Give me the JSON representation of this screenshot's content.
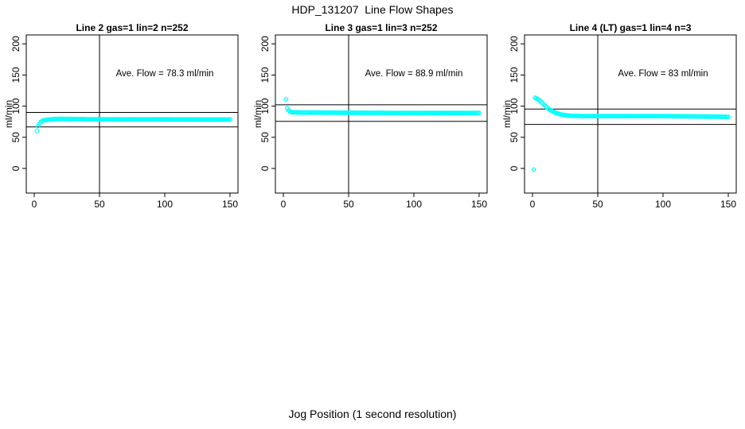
{
  "main_title": "HDP_131207  Line Flow Shapes",
  "x_axis_label": "Jog Position (1 second resolution)",
  "colors": {
    "points": "#00FFFF",
    "axis": "#000000",
    "background": "#FFFFFF"
  },
  "chart_data": [
    {
      "type": "scatter",
      "title": "Line 2 gas=1 lin=2 n=252",
      "ylabel": "ml/min",
      "xlim": [
        0,
        150
      ],
      "ylim": [
        0,
        200
      ],
      "xticks": [
        0,
        50,
        100,
        150
      ],
      "yticks": [
        0,
        50,
        100,
        150,
        200
      ],
      "annotation": "Ave. Flow =  78.3  ml/min",
      "ave_flow_ml_min": 78.3,
      "vline_x": 50,
      "h_line_upper": 90.0,
      "h_line_lower": 66.6,
      "marker": "open-circle",
      "points": [
        [
          2,
          60
        ],
        [
          3,
          68
        ],
        [
          4,
          72
        ],
        [
          5,
          74.5
        ],
        [
          6,
          76
        ],
        [
          7,
          77
        ],
        [
          8,
          77.5
        ],
        [
          9,
          77.8
        ],
        [
          10,
          78
        ],
        [
          12,
          78.6
        ],
        [
          14,
          79
        ],
        [
          16,
          79.3
        ],
        [
          18,
          79.4
        ],
        [
          20,
          79.5
        ],
        [
          25,
          79.4
        ],
        [
          30,
          79.2
        ],
        [
          40,
          79
        ],
        [
          50,
          79
        ],
        [
          60,
          78.9
        ],
        [
          70,
          78.8
        ],
        [
          80,
          78.8
        ],
        [
          90,
          78.8
        ],
        [
          100,
          78.8
        ],
        [
          110,
          78.7
        ],
        [
          120,
          78.7
        ],
        [
          130,
          78.6
        ],
        [
          140,
          78.6
        ],
        [
          150,
          78.6
        ]
      ]
    },
    {
      "type": "scatter",
      "title": "Line 3 gas=1 lin=3 n=252",
      "ylabel": "ml/min",
      "xlim": [
        0,
        150
      ],
      "ylim": [
        0,
        200
      ],
      "xticks": [
        0,
        50,
        100,
        150
      ],
      "yticks": [
        0,
        50,
        100,
        150,
        200
      ],
      "annotation": "Ave. Flow =  88.9  ml/min",
      "ave_flow_ml_min": 88.9,
      "vline_x": 50,
      "h_line_upper": 102.2,
      "h_line_lower": 75.6,
      "marker": "open-circle",
      "points": [
        [
          2,
          111
        ],
        [
          3,
          96.5
        ],
        [
          4,
          93
        ],
        [
          5,
          91.5
        ],
        [
          6,
          90.5
        ],
        [
          7,
          90.2
        ],
        [
          8,
          90
        ],
        [
          10,
          89.9
        ],
        [
          15,
          89.8
        ],
        [
          20,
          89.7
        ],
        [
          30,
          89.6
        ],
        [
          40,
          89.5
        ],
        [
          50,
          89.4
        ],
        [
          60,
          89.3
        ],
        [
          70,
          89.3
        ],
        [
          80,
          89.2
        ],
        [
          90,
          89.2
        ],
        [
          100,
          89.1
        ],
        [
          110,
          89.1
        ],
        [
          120,
          89
        ],
        [
          130,
          89
        ],
        [
          140,
          89
        ],
        [
          150,
          89
        ]
      ]
    },
    {
      "type": "scatter",
      "title": "Line 4 (LT) gas=1 lin=4 n=3",
      "ylabel": "ml/min",
      "xlim": [
        0,
        150
      ],
      "ylim": [
        0,
        200
      ],
      "xticks": [
        0,
        50,
        100,
        150
      ],
      "yticks": [
        0,
        50,
        100,
        150,
        200
      ],
      "annotation": "Ave. Flow =  83  ml/min",
      "ave_flow_ml_min": 83,
      "vline_x": 50,
      "h_line_upper": 95.4,
      "h_line_lower": 70.6,
      "marker": "open-circle",
      "points": [
        [
          1,
          -2
        ],
        [
          2,
          113.5
        ],
        [
          3,
          112.5
        ],
        [
          4,
          111.5
        ],
        [
          5,
          110
        ],
        [
          6,
          108
        ],
        [
          7,
          106
        ],
        [
          8,
          104
        ],
        [
          9,
          102
        ],
        [
          10,
          100
        ],
        [
          11,
          98
        ],
        [
          12,
          96.3
        ],
        [
          13,
          94.8
        ],
        [
          14,
          93.4
        ],
        [
          15,
          92.2
        ],
        [
          16,
          91
        ],
        [
          17,
          90
        ],
        [
          18,
          89.2
        ],
        [
          19,
          88.4
        ],
        [
          20,
          87.7
        ],
        [
          22,
          86.6
        ],
        [
          24,
          85.8
        ],
        [
          26,
          85.2
        ],
        [
          28,
          84.8
        ],
        [
          30,
          84.5
        ],
        [
          35,
          84.2
        ],
        [
          40,
          84
        ],
        [
          45,
          84
        ],
        [
          50,
          84
        ],
        [
          60,
          84
        ],
        [
          70,
          84
        ],
        [
          80,
          84
        ],
        [
          90,
          84
        ],
        [
          100,
          84
        ],
        [
          110,
          83.8
        ],
        [
          120,
          83.6
        ],
        [
          130,
          83.4
        ],
        [
          140,
          83.1
        ],
        [
          150,
          82.8
        ]
      ]
    }
  ]
}
